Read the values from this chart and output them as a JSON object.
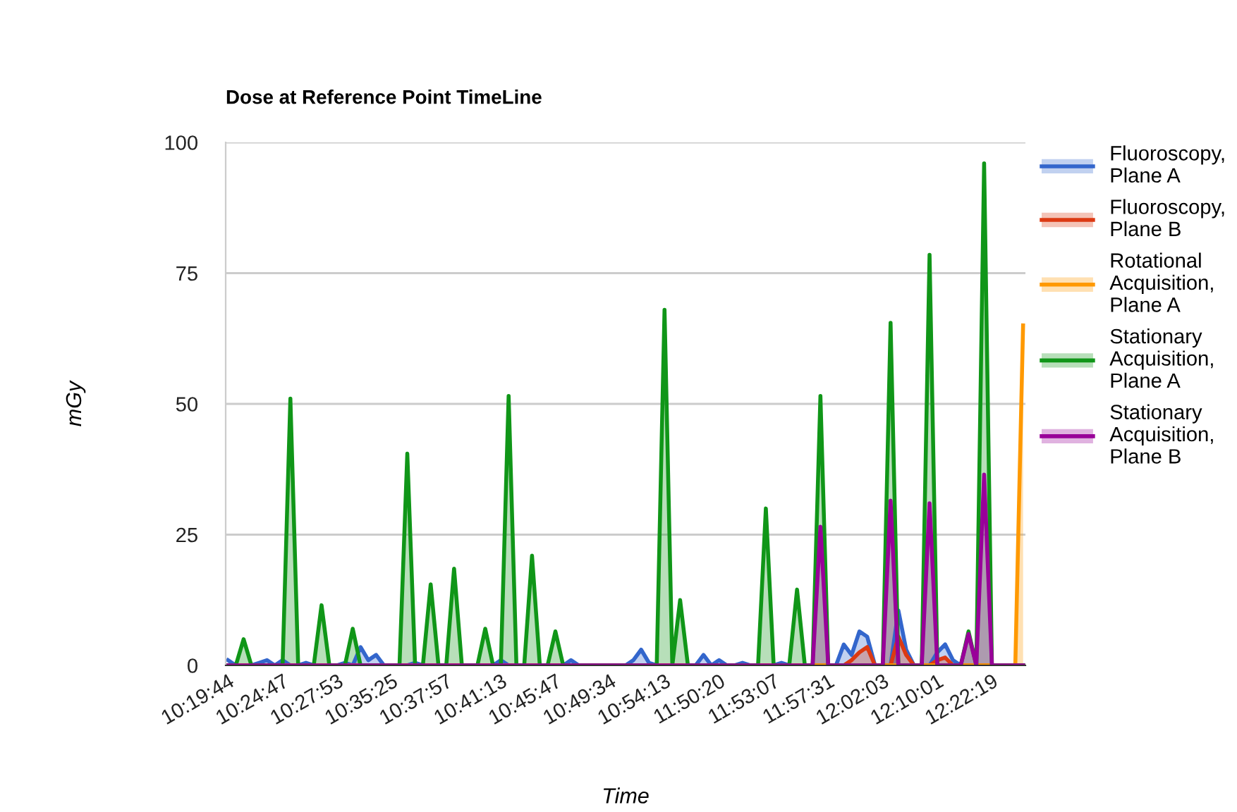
{
  "chart_data": {
    "type": "area",
    "title": "Dose at Reference Point TimeLine",
    "xlabel": "Time",
    "ylabel": "mGy",
    "categories": [
      "10:19:44",
      null,
      null,
      null,
      null,
      null,
      null,
      "10:24:47",
      null,
      null,
      null,
      null,
      null,
      null,
      "10:27:53",
      null,
      null,
      null,
      null,
      null,
      null,
      "10:35:25",
      null,
      null,
      null,
      null,
      null,
      null,
      "10:37:57",
      null,
      null,
      null,
      null,
      null,
      null,
      "10:41:13",
      null,
      null,
      null,
      null,
      null,
      null,
      "10:45:47",
      null,
      null,
      null,
      null,
      null,
      null,
      "10:49:34",
      null,
      null,
      null,
      null,
      null,
      null,
      "10:54:13",
      null,
      null,
      null,
      null,
      null,
      null,
      "11:50:20",
      null,
      null,
      null,
      null,
      null,
      null,
      "11:53:07",
      null,
      null,
      null,
      null,
      null,
      null,
      "11:57:31",
      null,
      null,
      null,
      null,
      null,
      null,
      "12:02:03",
      null,
      null,
      null,
      null,
      null,
      null,
      "12:10:01",
      null,
      null,
      null,
      null,
      null,
      null,
      "12:22:19",
      null,
      null,
      null,
      null
    ],
    "series": [
      {
        "name": "Fluoroscopy, Plane A",
        "color": "#3366cc",
        "values": [
          1,
          0,
          0,
          0,
          0.5,
          1,
          0,
          1,
          0,
          0,
          0.5,
          0,
          0,
          0,
          0,
          0.5,
          0,
          3.5,
          1,
          2,
          0,
          0,
          0,
          0,
          0.5,
          0,
          0,
          0,
          0,
          0,
          0,
          0,
          0,
          0,
          0,
          1,
          0,
          0,
          0,
          0,
          0,
          0,
          0,
          0,
          1,
          0,
          0,
          0,
          0,
          0,
          0,
          0,
          1,
          3,
          0.5,
          0,
          0,
          0,
          0,
          0,
          0,
          2,
          0,
          1,
          0,
          0,
          0.5,
          0,
          0,
          0,
          0,
          0.5,
          0,
          0,
          0,
          0,
          0,
          0,
          0,
          4,
          2,
          6.5,
          5.5,
          0,
          0,
          0,
          10.5,
          3,
          0,
          0,
          0,
          2.5,
          4,
          1,
          0,
          0,
          0,
          0,
          0,
          0,
          0,
          0,
          0
        ]
      },
      {
        "name": "Fluoroscopy, Plane B",
        "color": "#dc3912",
        "values": [
          0,
          0,
          0,
          0,
          0,
          0,
          0,
          0,
          0,
          0,
          0,
          0,
          0,
          0,
          0,
          0,
          0,
          0,
          0,
          0,
          0,
          0,
          0,
          0,
          0,
          0,
          0,
          0,
          0,
          0,
          0,
          0,
          0,
          0,
          0,
          0,
          0,
          0,
          0,
          0,
          0,
          0,
          0,
          0,
          0,
          0,
          0,
          0,
          0,
          0,
          0,
          0,
          0,
          0,
          0,
          0,
          0,
          0,
          0,
          0,
          0,
          0,
          0,
          0,
          0,
          0,
          0,
          0,
          0,
          0,
          0,
          0,
          0,
          0,
          0,
          0,
          0,
          0,
          0,
          0,
          1,
          2.5,
          3.5,
          0,
          0,
          0,
          5.5,
          2,
          0,
          0,
          0,
          1,
          1.5,
          0,
          0,
          0,
          0,
          0,
          0,
          0,
          0,
          0,
          0
        ]
      },
      {
        "name": "Rotational Acquisition, Plane A",
        "color": "#ff9900",
        "values": [
          0,
          0,
          0,
          0,
          0,
          0,
          0,
          0,
          0,
          0,
          0,
          0,
          0,
          0,
          0,
          0,
          0,
          0,
          0,
          0,
          0,
          0,
          0,
          0,
          0,
          0,
          0,
          0,
          0,
          0,
          0,
          0,
          0,
          0,
          0,
          0,
          0,
          0,
          0,
          0,
          0,
          0,
          0,
          0,
          0,
          0,
          0,
          0,
          0,
          0,
          0,
          0,
          0,
          0,
          0,
          0,
          0,
          0,
          0,
          0,
          0,
          0,
          0,
          0,
          0,
          0,
          0,
          0,
          0,
          0,
          0,
          0,
          0,
          0,
          0,
          0,
          0,
          0,
          0,
          0,
          0,
          0,
          0,
          0,
          0,
          0,
          0,
          0,
          0,
          0,
          0,
          0,
          0,
          0,
          0,
          0,
          0,
          0,
          0,
          0,
          0,
          0,
          65
        ]
      },
      {
        "name": "Stationary Acquisition, Plane A",
        "color": "#109618",
        "values": [
          0,
          0,
          5,
          0,
          0,
          0,
          0,
          0,
          51,
          0,
          0,
          0,
          11.5,
          0,
          0,
          0,
          7,
          0,
          0,
          0,
          0,
          0,
          0,
          40.5,
          0,
          0,
          15.5,
          0,
          0,
          18.5,
          0,
          0,
          0,
          7,
          0,
          0,
          51.5,
          0,
          0,
          21,
          0,
          0,
          6.5,
          0,
          0,
          0,
          0,
          0,
          0,
          0,
          0,
          0,
          0,
          0,
          0,
          0,
          68,
          0,
          12.5,
          0,
          0,
          0,
          0,
          0,
          0,
          0,
          0,
          0,
          0,
          30,
          0,
          0,
          0,
          14.5,
          0,
          0,
          51.5,
          0,
          0,
          0,
          0,
          0,
          0,
          0,
          0,
          65.5,
          0,
          0,
          0,
          0,
          78.5,
          0,
          0,
          0,
          0,
          6.5,
          0,
          96,
          0,
          0,
          0,
          0,
          0
        ]
      },
      {
        "name": "Stationary Acquisition, Plane B",
        "color": "#990099",
        "values": [
          0,
          0,
          0,
          0,
          0,
          0,
          0,
          0,
          0,
          0,
          0,
          0,
          0,
          0,
          0,
          0,
          0,
          0,
          0,
          0,
          0,
          0,
          0,
          0,
          0,
          0,
          0,
          0,
          0,
          0,
          0,
          0,
          0,
          0,
          0,
          0,
          0,
          0,
          0,
          0,
          0,
          0,
          0,
          0,
          0,
          0,
          0,
          0,
          0,
          0,
          0,
          0,
          0,
          0,
          0,
          0,
          0,
          0,
          0,
          0,
          0,
          0,
          0,
          0,
          0,
          0,
          0,
          0,
          0,
          0,
          0,
          0,
          0,
          0,
          0,
          0,
          26.5,
          0,
          0,
          0,
          0,
          0,
          0,
          0,
          0,
          31.5,
          0,
          0,
          0,
          0,
          31,
          0,
          0,
          0,
          0,
          6,
          0,
          36.5,
          0,
          0,
          0,
          0,
          0
        ]
      }
    ],
    "ylim": [
      0,
      100
    ],
    "yticks": [
      0,
      25,
      50,
      75,
      100
    ],
    "grid": "y",
    "legend": "right",
    "marker": "none",
    "line_style": "solid"
  }
}
